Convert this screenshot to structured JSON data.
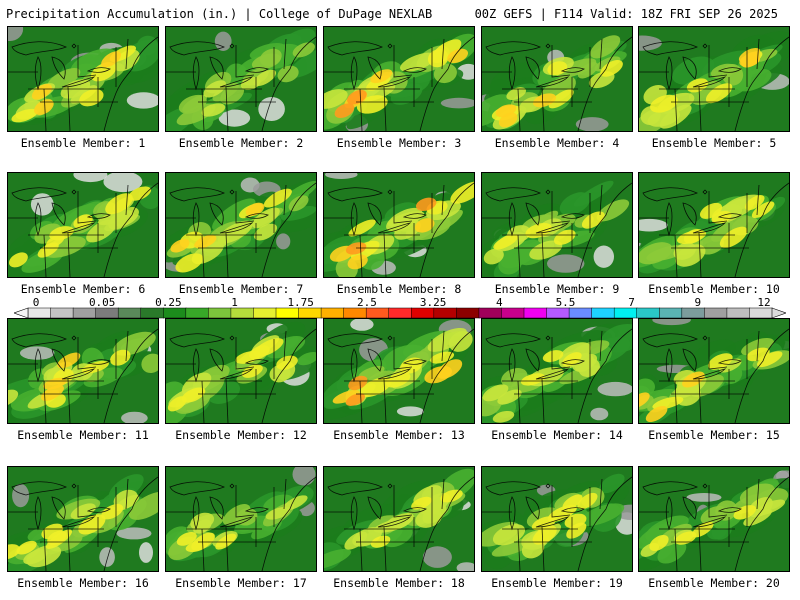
{
  "header": {
    "title_left": "Precipitation Accumulation (in.) | College of DuPage NEXLAB",
    "title_right": "00Z GEFS | F114 Valid: 18Z FRI SEP 26 2025"
  },
  "colorbar": {
    "labels": [
      "0",
      "0.05",
      "0.25",
      "1",
      "1.75",
      "2.5",
      "3.25",
      "4",
      "5.5",
      "7",
      "9",
      "12"
    ],
    "colors": [
      "#e8e8e8",
      "#c4c4c4",
      "#a0a0a0",
      "#7c7c7c",
      "#5a8a5a",
      "#2a7a2a",
      "#1c8c1c",
      "#38a828",
      "#7cc43c",
      "#b4dc3c",
      "#e6f030",
      "#ffff00",
      "#ffd800",
      "#ffb000",
      "#ff8800",
      "#ff5a1e",
      "#ff2a2a",
      "#e00000",
      "#b40000",
      "#8c0000",
      "#a0005a",
      "#c8008c",
      "#f000f0",
      "#b45aff",
      "#6a8cff",
      "#1ed2ff",
      "#00f0f0",
      "#2ac8c8",
      "#5ab4b4",
      "#7c9c9c",
      "#a0a0a0",
      "#bebebe",
      "#dadada"
    ]
  },
  "members": [
    {
      "label": "Ensemble Member: 1",
      "intensity": 0.65,
      "seed": 1
    },
    {
      "label": "Ensemble Member: 2",
      "intensity": 0.35,
      "seed": 2
    },
    {
      "label": "Ensemble Member: 3",
      "intensity": 0.75,
      "seed": 3
    },
    {
      "label": "Ensemble Member: 4",
      "intensity": 0.6,
      "seed": 4
    },
    {
      "label": "Ensemble Member: 5",
      "intensity": 0.6,
      "seed": 5
    },
    {
      "label": "Ensemble Member: 6",
      "intensity": 0.55,
      "seed": 6
    },
    {
      "label": "Ensemble Member: 7",
      "intensity": 0.6,
      "seed": 7
    },
    {
      "label": "Ensemble Member: 8",
      "intensity": 0.8,
      "seed": 8
    },
    {
      "label": "Ensemble Member: 9",
      "intensity": 0.45,
      "seed": 9
    },
    {
      "label": "Ensemble Member: 10",
      "intensity": 0.55,
      "seed": 10
    },
    {
      "label": "Ensemble Member: 11",
      "intensity": 0.6,
      "seed": 11
    },
    {
      "label": "Ensemble Member: 12",
      "intensity": 0.55,
      "seed": 12
    },
    {
      "label": "Ensemble Member: 13",
      "intensity": 0.7,
      "seed": 13
    },
    {
      "label": "Ensemble Member: 14",
      "intensity": 0.5,
      "seed": 14
    },
    {
      "label": "Ensemble Member: 15",
      "intensity": 0.6,
      "seed": 15
    },
    {
      "label": "Ensemble Member: 16",
      "intensity": 0.55,
      "seed": 16
    },
    {
      "label": "Ensemble Member: 17",
      "intensity": 0.45,
      "seed": 17
    },
    {
      "label": "Ensemble Member: 18",
      "intensity": 0.5,
      "seed": 18
    },
    {
      "label": "Ensemble Member: 19",
      "intensity": 0.55,
      "seed": 19
    },
    {
      "label": "Ensemble Member: 20",
      "intensity": 0.45,
      "seed": 20
    }
  ]
}
